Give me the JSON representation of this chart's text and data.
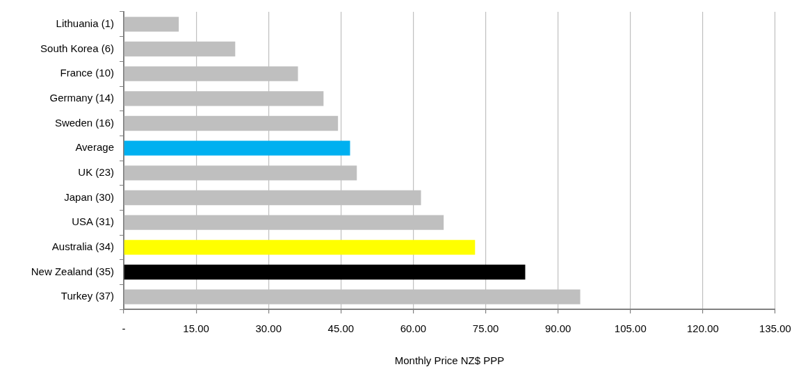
{
  "chart_data": {
    "type": "bar",
    "orientation": "horizontal",
    "xlabel": "Monthly Price NZ$ PPP",
    "categories": [
      "Lithuania (1)",
      "South Korea (6)",
      "France (10)",
      "Germany (14)",
      "Sweden (16)",
      "Average",
      "UK (23)",
      "Japan (30)",
      "USA (31)",
      "Australia (34)",
      "New Zealand (35)",
      "Turkey (37)"
    ],
    "values": [
      11.4,
      23.1,
      36.1,
      41.4,
      44.4,
      46.9,
      48.3,
      61.6,
      66.3,
      72.8,
      83.2,
      94.6
    ],
    "colors": [
      "#bfbfbf",
      "#bfbfbf",
      "#bfbfbf",
      "#bfbfbf",
      "#bfbfbf",
      "#00b0f0",
      "#bfbfbf",
      "#bfbfbf",
      "#bfbfbf",
      "#ffff00",
      "#000000",
      "#bfbfbf"
    ],
    "xlim": [
      0,
      135
    ],
    "xticks": [
      {
        "value": 0,
        "label": "-"
      },
      {
        "value": 15,
        "label": "15.00"
      },
      {
        "value": 30,
        "label": "30.00"
      },
      {
        "value": 45,
        "label": "45.00"
      },
      {
        "value": 60,
        "label": "60.00"
      },
      {
        "value": 75,
        "label": "75.00"
      },
      {
        "value": 90,
        "label": "90.00"
      },
      {
        "value": 105,
        "label": "105.00"
      },
      {
        "value": 120,
        "label": "120.00"
      },
      {
        "value": 135,
        "label": "135.00"
      }
    ],
    "grid": "x",
    "legend": false
  }
}
